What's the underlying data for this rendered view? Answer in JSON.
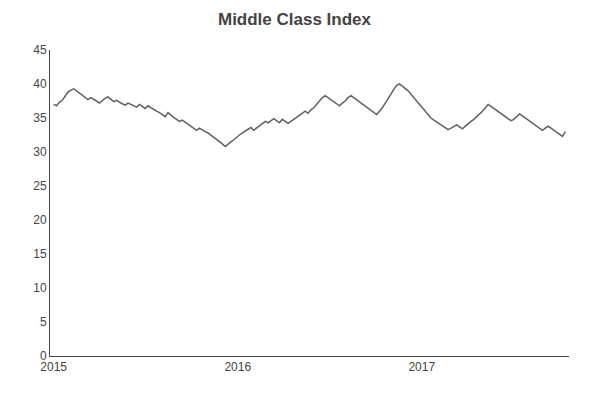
{
  "chart_data": {
    "type": "line",
    "title": "Middle Class Index",
    "color": "#606060",
    "x": [
      2015,
      2015.0155,
      2015.0311,
      2015.0466,
      2015.0621,
      2015.0777,
      2015.0932,
      2015.1087,
      2015.1242,
      2015.1398,
      2015.1553,
      2015.1708,
      2015.1864,
      2015.2019,
      2015.2174,
      2015.233,
      2015.2485,
      2015.264,
      2015.2796,
      2015.2951,
      2015.3106,
      2015.3261,
      2015.3417,
      2015.3572,
      2015.3727,
      2015.3883,
      2015.4038,
      2015.4193,
      2015.4349,
      2015.4504,
      2015.4659,
      2015.4815,
      2015.497,
      2015.5125,
      2015.528,
      2015.5436,
      2015.5591,
      2015.5746,
      2015.5902,
      2015.6057,
      2015.6212,
      2015.6368,
      2015.6523,
      2015.6678,
      2015.6834,
      2015.6989,
      2015.7144,
      2015.7299,
      2015.7455,
      2015.761,
      2015.7765,
      2015.7921,
      2015.8076,
      2015.8231,
      2015.8387,
      2015.8542,
      2015.8697,
      2015.8853,
      2015.9008,
      2015.9163,
      2015.9318,
      2015.9474,
      2015.9629,
      2015.9784,
      2015.994,
      2016.0095,
      2016.025,
      2016.0406,
      2016.0561,
      2016.0716,
      2016.0872,
      2016.1027,
      2016.1182,
      2016.1337,
      2016.1493,
      2016.1648,
      2016.1803,
      2016.1959,
      2016.2114,
      2016.2269,
      2016.2425,
      2016.258,
      2016.2735,
      2016.2891,
      2016.3046,
      2016.3201,
      2016.3356,
      2016.3512,
      2016.3667,
      2016.3822,
      2016.3978,
      2016.4133,
      2016.4288,
      2016.4444,
      2016.4599,
      2016.4754,
      2016.491,
      2016.5065,
      2016.522,
      2016.5375,
      2016.5531,
      2016.5686,
      2016.5841,
      2016.5997,
      2016.6152,
      2016.6307,
      2016.6463,
      2016.6618,
      2016.6773,
      2016.6928,
      2016.7084,
      2016.7239,
      2016.7394,
      2016.755,
      2016.7705,
      2016.786,
      2016.8016,
      2016.8171,
      2016.8326,
      2016.8482,
      2016.8637,
      2016.8792,
      2016.8947,
      2016.9103,
      2016.9258,
      2016.9413,
      2016.9569,
      2016.9724,
      2016.9879,
      2017.0035,
      2017.019,
      2017.0345,
      2017.0501,
      2017.0656,
      2017.0811,
      2017.0966,
      2017.1122,
      2017.1277,
      2017.1432,
      2017.1588,
      2017.1743,
      2017.1898,
      2017.2054,
      2017.2209,
      2017.2364,
      2017.252,
      2017.2675,
      2017.283,
      2017.2985,
      2017.3141,
      2017.3296,
      2017.3451,
      2017.3607,
      2017.3762,
      2017.3917,
      2017.4073,
      2017.4228,
      2017.4383,
      2017.4539,
      2017.4694,
      2017.4849,
      2017.5004,
      2017.516,
      2017.5315,
      2017.547,
      2017.5626,
      2017.5781,
      2017.5936,
      2017.6092,
      2017.6247,
      2017.6402,
      2017.6558,
      2017.6713,
      2017.6868,
      2017.7023,
      2017.7179,
      2017.7334,
      2017.7489,
      2017.7645,
      2017.78
    ],
    "values": [
      37.0,
      36.8,
      37.3,
      37.6,
      38.2,
      38.8,
      39.1,
      39.3,
      39.0,
      38.7,
      38.3,
      38.0,
      37.7,
      38.0,
      37.8,
      37.5,
      37.2,
      37.6,
      37.9,
      38.1,
      37.8,
      37.4,
      37.6,
      37.3,
      37.1,
      36.9,
      37.2,
      37.0,
      36.8,
      36.6,
      37.0,
      36.7,
      36.4,
      36.8,
      36.5,
      36.3,
      36.0,
      35.8,
      35.5,
      35.2,
      35.8,
      35.4,
      35.1,
      34.8,
      34.5,
      34.7,
      34.4,
      34.1,
      33.8,
      33.5,
      33.2,
      33.5,
      33.2,
      33.0,
      32.8,
      32.5,
      32.2,
      31.8,
      31.5,
      31.2,
      30.8,
      31.2,
      31.5,
      31.8,
      32.2,
      32.5,
      32.8,
      33.1,
      33.4,
      33.6,
      33.2,
      33.5,
      33.8,
      34.2,
      34.5,
      34.3,
      34.6,
      34.9,
      34.6,
      34.3,
      34.8,
      34.5,
      34.2,
      34.5,
      34.8,
      35.1,
      35.4,
      35.7,
      36.0,
      35.7,
      36.2,
      36.5,
      37.0,
      37.5,
      38.0,
      38.3,
      38.0,
      37.7,
      37.5,
      37.2,
      36.8,
      37.2,
      37.5,
      38.0,
      38.3,
      38.0,
      37.7,
      37.4,
      37.1,
      36.8,
      36.5,
      36.2,
      35.8,
      35.5,
      36.0,
      36.5,
      37.2,
      37.8,
      38.5,
      39.2,
      39.8,
      40.0,
      39.7,
      39.4,
      39.0,
      38.5,
      38.0,
      37.5,
      37.0,
      36.5,
      36.0,
      35.5,
      35.0,
      34.7,
      34.4,
      34.2,
      33.9,
      33.6,
      33.3,
      33.5,
      33.8,
      34.0,
      33.7,
      33.4,
      33.8,
      34.2,
      34.5,
      34.8,
      35.2,
      35.5,
      36.0,
      36.5,
      37.0,
      36.7,
      36.4,
      36.1,
      35.8,
      35.5,
      35.2,
      34.9,
      34.6,
      34.8,
      35.2,
      35.6,
      35.3,
      35.0,
      34.7,
      34.4,
      34.1,
      33.8,
      33.5,
      33.2,
      33.5,
      33.8,
      33.5,
      33.2,
      32.9,
      32.6,
      32.3,
      33.0
    ],
    "xlim": [
      2014.98,
      2017.8
    ],
    "xticks": [
      2015,
      2016,
      2017
    ],
    "ylim": [
      0,
      45
    ],
    "yticks": [
      0,
      5,
      10,
      15,
      20,
      25,
      30,
      35,
      40,
      45
    ],
    "grid": false
  }
}
